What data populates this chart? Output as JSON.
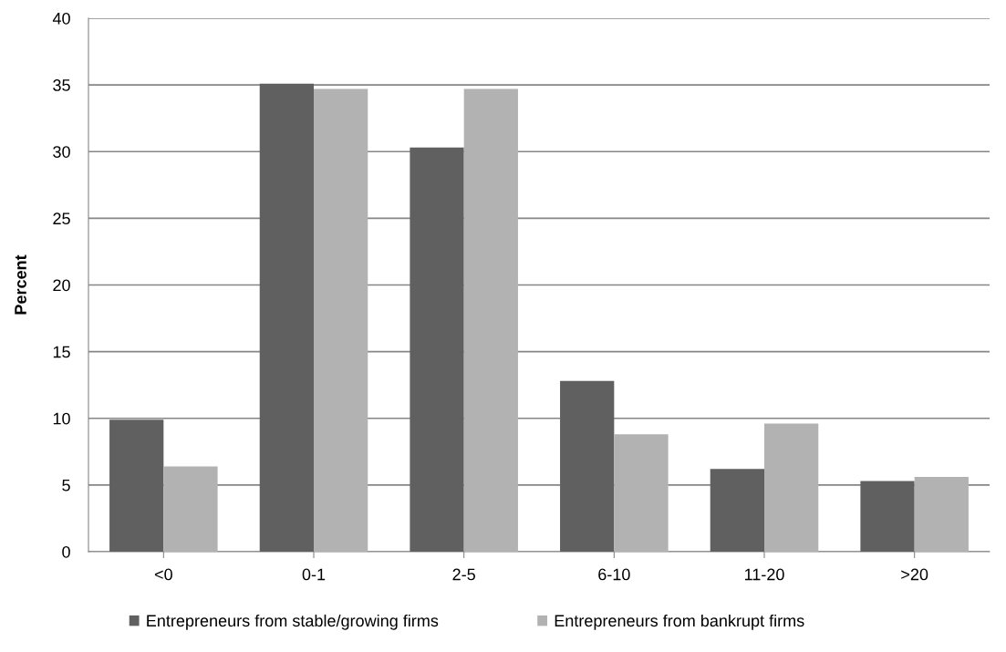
{
  "chart_data": {
    "type": "bar",
    "ylabel": "Percent",
    "categories": [
      "<0",
      "0-1",
      "2-5",
      "6-10",
      "11-20",
      ">20"
    ],
    "series": [
      {
        "name": "Entrepreneurs from stable/growing firms",
        "color": "#606060",
        "values": [
          9.9,
          35.1,
          30.3,
          12.8,
          6.2,
          5.3
        ]
      },
      {
        "name": "Entrepreneurs from bankrupt firms",
        "color": "#b2b2b2",
        "values": [
          6.4,
          34.7,
          34.7,
          8.8,
          9.6,
          5.6
        ]
      }
    ],
    "ylim": [
      0,
      40
    ],
    "yticks": [
      0,
      5,
      10,
      15,
      20,
      25,
      30,
      35,
      40
    ],
    "grid": "y",
    "legend": "bottom"
  }
}
